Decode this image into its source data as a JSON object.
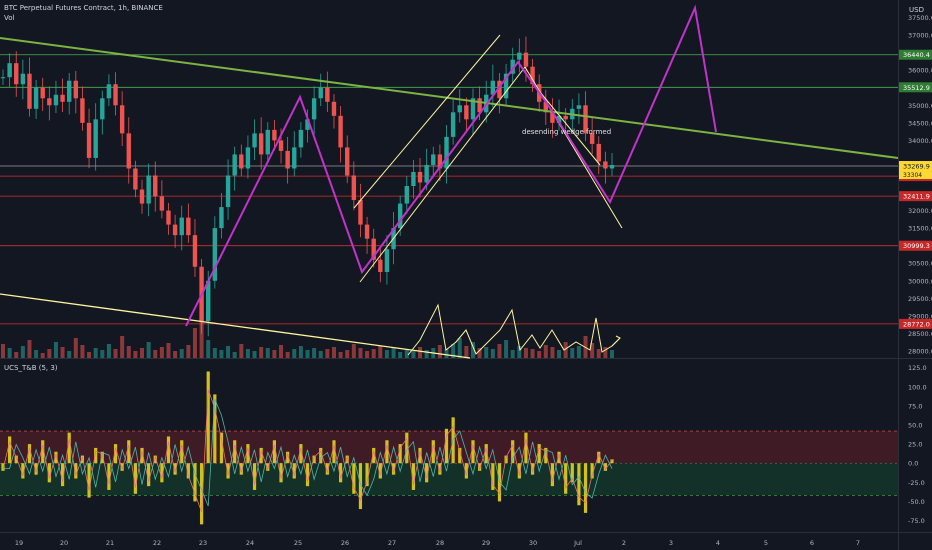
{
  "header": {
    "symbol_line": "BTC Perpetual Futures Contract, 1h, BINANCE",
    "volume_label": "Vol",
    "currency": "USD",
    "indicator_label": "UCS_T&B (5, 3)"
  },
  "annotations": {
    "wedge_text": "desending wedge formed"
  },
  "colors": {
    "background": "#131722",
    "bull": "#26a69a",
    "bear": "#ef5350",
    "trendline_green": "#7cb342",
    "channel": "#fff59d",
    "projection": "#c133c9",
    "level_green": "#4caf50",
    "level_red": "#d32f2f",
    "osc_bar": "#d4c01a"
  },
  "chart_data": {
    "type": "candlestick",
    "x_tick_labels": [
      "19",
      "20",
      "21",
      "22",
      "23",
      "24",
      "25",
      "26",
      "27",
      "28",
      "29",
      "30",
      "Jul",
      "2",
      "3",
      "4",
      "5",
      "6",
      "7"
    ],
    "price_axis": {
      "range": [
        27800,
        38000
      ],
      "tick_labels": [
        "37500.0",
        "37000.0",
        "36000.0",
        "35000.0",
        "34500.0",
        "34000.0",
        "33000.0",
        "32000.0",
        "31500.0",
        "31000.0",
        "30500.0",
        "30000.0",
        "29500.0",
        "29000.0",
        "28500.0",
        "28000.0"
      ]
    },
    "price_levels": [
      {
        "label": "36440.4",
        "value": 36440.4,
        "color": "green"
      },
      {
        "label": "35512.9",
        "value": 35512.9,
        "color": "green"
      },
      {
        "label": "33269.9",
        "value": 33269.9,
        "color": "current"
      },
      {
        "label": "32982.4",
        "value": 32982.4,
        "color": "red"
      },
      {
        "label": "32411.9",
        "value": 32411.9,
        "color": "red"
      },
      {
        "label": "30999.3",
        "value": 30999.3,
        "color": "red"
      },
      {
        "label": "28772.0",
        "value": 28772.0,
        "color": "red"
      }
    ],
    "current_price_sub": "33304",
    "oscillator_axis": {
      "range": [
        -90,
        135
      ],
      "tick_labels": [
        "125.0",
        "100.0",
        "75.0",
        "50.0",
        "25.0",
        "0.0",
        "-25.0",
        "-50.0",
        "-75.0"
      ],
      "upper_band": 42,
      "lower_band": -42
    },
    "close_path": [
      35800,
      36200,
      35600,
      35900,
      34900,
      35500,
      35200,
      35000,
      35300,
      35100,
      35700,
      35200,
      34500,
      33500,
      34600,
      35200,
      35600,
      35000,
      34200,
      33200,
      32600,
      32200,
      33000,
      32400,
      32000,
      31600,
      31300,
      31800,
      31300,
      30400,
      28850,
      30000,
      31500,
      32100,
      33000,
      33600,
      33200,
      33800,
      34200,
      33600,
      34300,
      34000,
      33700,
      33200,
      33800,
      34300,
      34600,
      35200,
      35500,
      35100,
      34700,
      33800,
      33000,
      32300,
      31600,
      31200,
      30600,
      30250,
      30900,
      31500,
      32200,
      32700,
      33100,
      32800,
      33300,
      33600,
      33200,
      34100,
      34800,
      35000,
      34600,
      35200,
      34800,
      35300,
      35700,
      35200,
      35900,
      36300,
      36500,
      36100,
      35600,
      35100,
      34800,
      34500,
      34700,
      34600,
      34900,
      35000,
      34200,
      33900,
      33400,
      33200,
      33300
    ],
    "osc_path": [
      -10,
      35,
      10,
      -20,
      25,
      -15,
      30,
      -25,
      15,
      -30,
      40,
      -20,
      10,
      -45,
      20,
      15,
      -35,
      25,
      -10,
      30,
      -40,
      20,
      -30,
      10,
      -25,
      35,
      -15,
      30,
      -20,
      -50,
      -80,
      120,
      90,
      40,
      -20,
      30,
      -15,
      25,
      -35,
      20,
      -10,
      30,
      -25,
      15,
      -20,
      25,
      -30,
      10,
      20,
      -15,
      30,
      -25,
      10,
      -40,
      -60,
      -30,
      20,
      -20,
      30,
      -15,
      25,
      40,
      -35,
      20,
      -25,
      30,
      -15,
      45,
      60,
      20,
      -20,
      30,
      -10,
      25,
      -35,
      -50,
      10,
      30,
      -20,
      40,
      -15,
      25,
      20,
      -30,
      15,
      -40,
      -25,
      -55,
      -65,
      -20,
      15,
      -10,
      5
    ],
    "volume_path": [
      14,
      10,
      6,
      12,
      18,
      8,
      5,
      9,
      16,
      11,
      7,
      20,
      13,
      6,
      10,
      8,
      14,
      9,
      22,
      12,
      7,
      10,
      16,
      8,
      11,
      15,
      7,
      9,
      13,
      30,
      48,
      18,
      10,
      8,
      12,
      6,
      14,
      9,
      7,
      11,
      10,
      8,
      13,
      6,
      9,
      12,
      8,
      10,
      7,
      9,
      11,
      6,
      8,
      14,
      10,
      7,
      9,
      12,
      8,
      10,
      6,
      9,
      7,
      11,
      8,
      10,
      13,
      9,
      14,
      20,
      12,
      16,
      10,
      11,
      9,
      14,
      18,
      8,
      12,
      10,
      9,
      7,
      13,
      11,
      8,
      16,
      10,
      12,
      22,
      15,
      9,
      11,
      8
    ]
  }
}
